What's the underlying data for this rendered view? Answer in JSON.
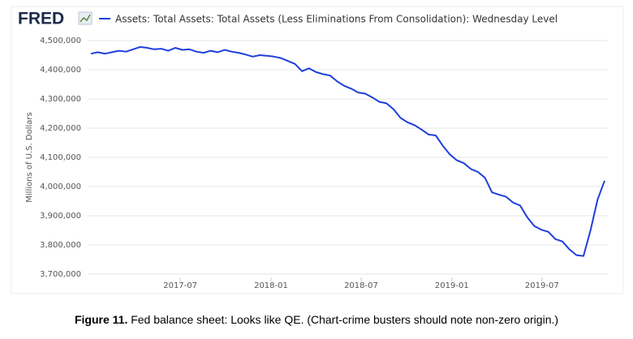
{
  "logo": "FRED",
  "chart_data": {
    "type": "line",
    "y_label": "Millions of U.S. Dollars",
    "categories": [
      null,
      null,
      null,
      null,
      null,
      null,
      null,
      null,
      null,
      null,
      null,
      null,
      null,
      null,
      null,
      null,
      null,
      null,
      null,
      null,
      null,
      null,
      null,
      null,
      null,
      null,
      null,
      null,
      null,
      null,
      null,
      null,
      null,
      null,
      null,
      null,
      null,
      null,
      null,
      null,
      null,
      null,
      null,
      null,
      null,
      null,
      null,
      null,
      null,
      null,
      null,
      null,
      null,
      null,
      null,
      null,
      null,
      null,
      null,
      null,
      null,
      null,
      null,
      null,
      null,
      null,
      null,
      null,
      null,
      null,
      null,
      null,
      null,
      null
    ],
    "series": [
      {
        "name": "Assets: Total Assets: Total Assets (Less Eliminations From Consolidation): Wednesday Level",
        "color": "#1f3fdb",
        "values": [
          4455000,
          4460000,
          4455000,
          4460000,
          4465000,
          4462000,
          4470000,
          4478000,
          4475000,
          4470000,
          4472000,
          4465000,
          4475000,
          4468000,
          4470000,
          4462000,
          4458000,
          4465000,
          4460000,
          4468000,
          4462000,
          4458000,
          4452000,
          4445000,
          4450000,
          4448000,
          4445000,
          4440000,
          4430000,
          4420000,
          4395000,
          4405000,
          4392000,
          4385000,
          4380000,
          4360000,
          4345000,
          4335000,
          4322000,
          4318000,
          4305000,
          4290000,
          4285000,
          4265000,
          4235000,
          4220000,
          4210000,
          4195000,
          4178000,
          4175000,
          4140000,
          4110000,
          4090000,
          4080000,
          4060000,
          4050000,
          4030000,
          3980000,
          3972000,
          3965000,
          3945000,
          3935000,
          3895000,
          3865000,
          3852000,
          3845000,
          3820000,
          3812000,
          3785000,
          3765000,
          3762000,
          3850000,
          3955000,
          4020000
        ]
      }
    ],
    "xlim": [
      0,
      73
    ],
    "xticks": [
      {
        "value": 12.7,
        "label": "2017-07"
      },
      {
        "value": 25.6,
        "label": "2018-01"
      },
      {
        "value": 38.4,
        "label": "2018-07"
      },
      {
        "value": 51.3,
        "label": "2019-01"
      },
      {
        "value": 64.1,
        "label": "2019-07"
      }
    ],
    "ylim": [
      3700000,
      4500000
    ],
    "yticks": [
      {
        "value": 3700000,
        "label": "3,700,000"
      },
      {
        "value": 3800000,
        "label": "3,800,000"
      },
      {
        "value": 3900000,
        "label": "3,900,000"
      },
      {
        "value": 4000000,
        "label": "4,000,000"
      },
      {
        "value": 4100000,
        "label": "4,100,000"
      },
      {
        "value": 4200000,
        "label": "4,200,000"
      },
      {
        "value": 4300000,
        "label": "4,300,000"
      },
      {
        "value": 4400000,
        "label": "4,400,000"
      },
      {
        "value": 4500000,
        "label": "4,500,000"
      }
    ],
    "grid": true
  },
  "caption": {
    "label": "Figure 11.",
    "text": "Fed balance sheet: Looks like QE. (Chart-crime busters should note non-zero origin.)"
  }
}
